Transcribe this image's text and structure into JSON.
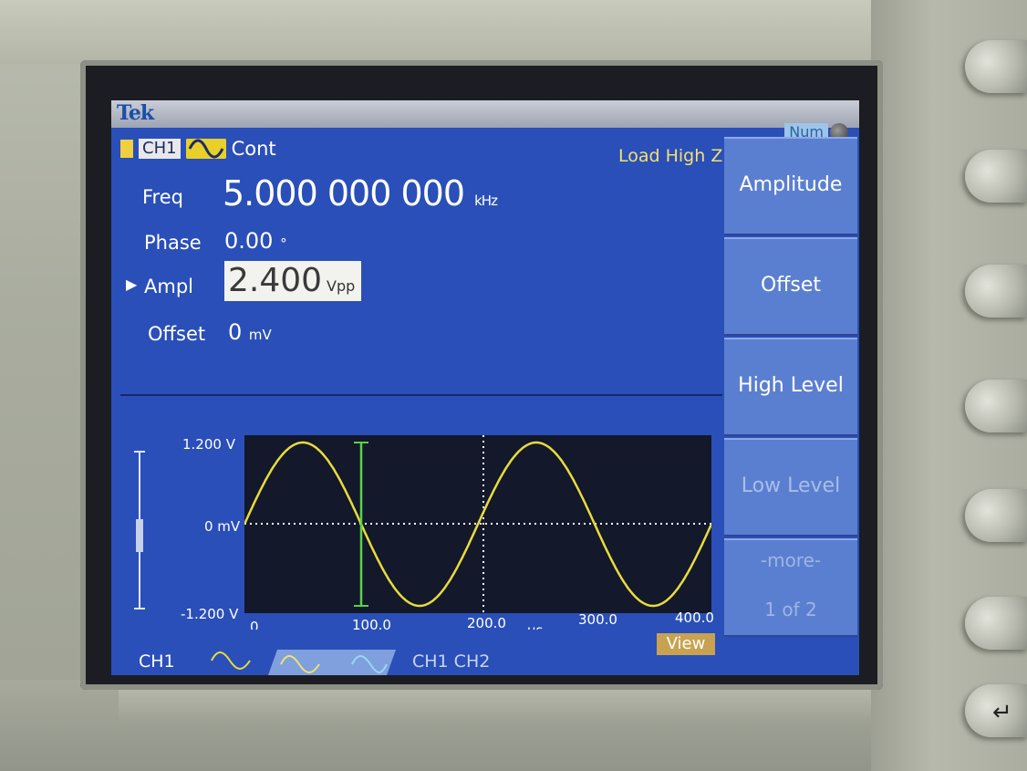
{
  "instrument": {
    "brand": "Tek",
    "num_indicator": "Num"
  },
  "channel": {
    "name": "CH1",
    "mode": "Cont",
    "load": "Load High Z"
  },
  "params": {
    "freq_label": "Freq",
    "freq_value": "5.000 000 000",
    "freq_unit": "kHz",
    "phase_label": "Phase",
    "phase_value": "0.00",
    "phase_unit": "°",
    "ampl_label": "Ampl",
    "ampl_value": "2.400",
    "ampl_unit": "Vpp",
    "offset_label": "Offset",
    "offset_value": "0",
    "offset_unit": "mV"
  },
  "softkeys": [
    {
      "label": "Amplitude"
    },
    {
      "label": "Offset"
    },
    {
      "label": "High Level"
    },
    {
      "label": "Low Level"
    },
    {
      "label": "-more-"
    },
    {
      "label": "1 of 2"
    }
  ],
  "waveform": {
    "y_top": "1.200 V",
    "y_mid": "0 mV",
    "y_bottom": "-1.200 V",
    "x_ticks": [
      "0",
      "100.0",
      "200.0",
      "300.0",
      "400.0"
    ],
    "x_unit": "µs",
    "amplitude_v": 1.2,
    "period_us": 200,
    "x_range_us": [
      0,
      400
    ],
    "cursor_us": 100,
    "trace_color": "#e8dc3c",
    "cursor_color": "#58d24a"
  },
  "tabs": {
    "ch1": "CH1",
    "ch1_ch2": "CH1  CH2",
    "view": "View"
  },
  "colors": {
    "screen_bg": "#2a4fb8",
    "softkey_bg": "#5b7fd0",
    "highlight": "#f4e070"
  }
}
